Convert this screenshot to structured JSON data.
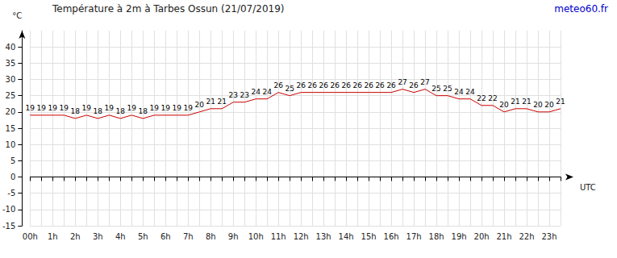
{
  "chart_data": {
    "type": "line",
    "title": "Température à 2m à Tarbes Ossun (21/07/2019)",
    "subtitle": "meteo60.fr",
    "x_label": "UTC",
    "y_label": "°C",
    "categories": [
      "00h",
      null,
      "1h",
      null,
      "2h",
      null,
      "3h",
      null,
      "4h",
      null,
      "5h",
      null,
      "6h",
      null,
      "7h",
      null,
      "8h",
      null,
      "9h",
      null,
      "10h",
      null,
      "11h",
      null,
      "12h",
      null,
      "13h",
      null,
      "14h",
      null,
      "15h",
      null,
      "16h",
      null,
      "17h",
      null,
      "18h",
      null,
      "19h",
      null,
      "20h",
      null,
      "21h",
      null,
      "22h",
      null,
      "23h",
      null
    ],
    "values": [
      19,
      19,
      19,
      19,
      18,
      19,
      18,
      19,
      18,
      19,
      18,
      19,
      19,
      19,
      19,
      20,
      21,
      21,
      23,
      23,
      24,
      24,
      26,
      25,
      26,
      26,
      26,
      26,
      26,
      26,
      26,
      26,
      26,
      27,
      26,
      27,
      25,
      25,
      24,
      24,
      22,
      22,
      20,
      21,
      21,
      20,
      20,
      21
    ],
    "color": "#cc0000",
    "ylim": [
      -15,
      45
    ],
    "yticks": [
      -15,
      -10,
      -5,
      0,
      5,
      10,
      15,
      20,
      25,
      30,
      35,
      40
    ],
    "grid": true,
    "data_labels": true
  }
}
